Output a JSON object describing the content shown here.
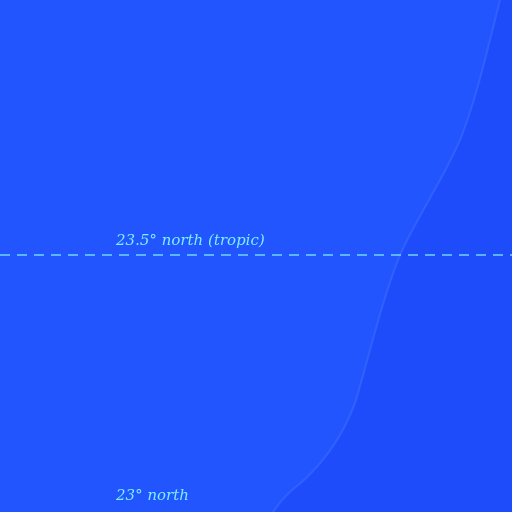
{
  "map": {
    "colors": {
      "water_main": "#2255fe",
      "water_east": "#1f4cfb",
      "border": "#3a6cff",
      "line": "#7df0ff"
    },
    "parallels": [
      {
        "label": "23.5° north (tropic)",
        "style": "dashed"
      },
      {
        "label": "23° north",
        "style": "none"
      }
    ]
  }
}
